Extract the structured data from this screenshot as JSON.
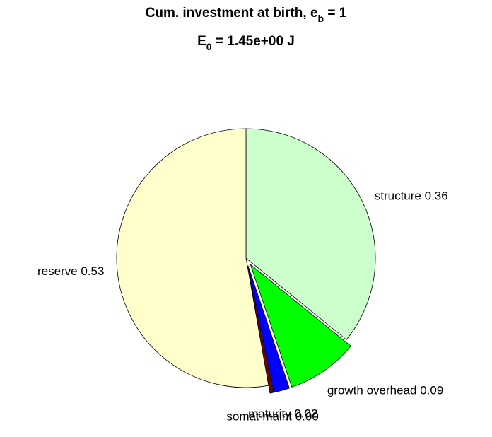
{
  "chart_data": {
    "type": "pie",
    "title": {
      "main": "Cum. investment at birth, e",
      "sub": "b",
      "rest": " = 1"
    },
    "subtitle": {
      "main": "E",
      "sub": "0",
      "rest": " = 1.45e+00 J"
    },
    "categories": [
      "structure",
      "growth overhead",
      "maturity",
      "somat maint",
      "reserve"
    ],
    "values": [
      0.36,
      0.09,
      0.02,
      0.004,
      0.53
    ],
    "value_labels": [
      "0.36",
      "0.09",
      "0.02",
      "0.00",
      "0.53"
    ],
    "colors": [
      "#ccffcc",
      "#00ff00",
      "#0000ff",
      "#800000",
      "#ffffcc"
    ],
    "explode": [
      false,
      true,
      true,
      true,
      false
    ]
  }
}
